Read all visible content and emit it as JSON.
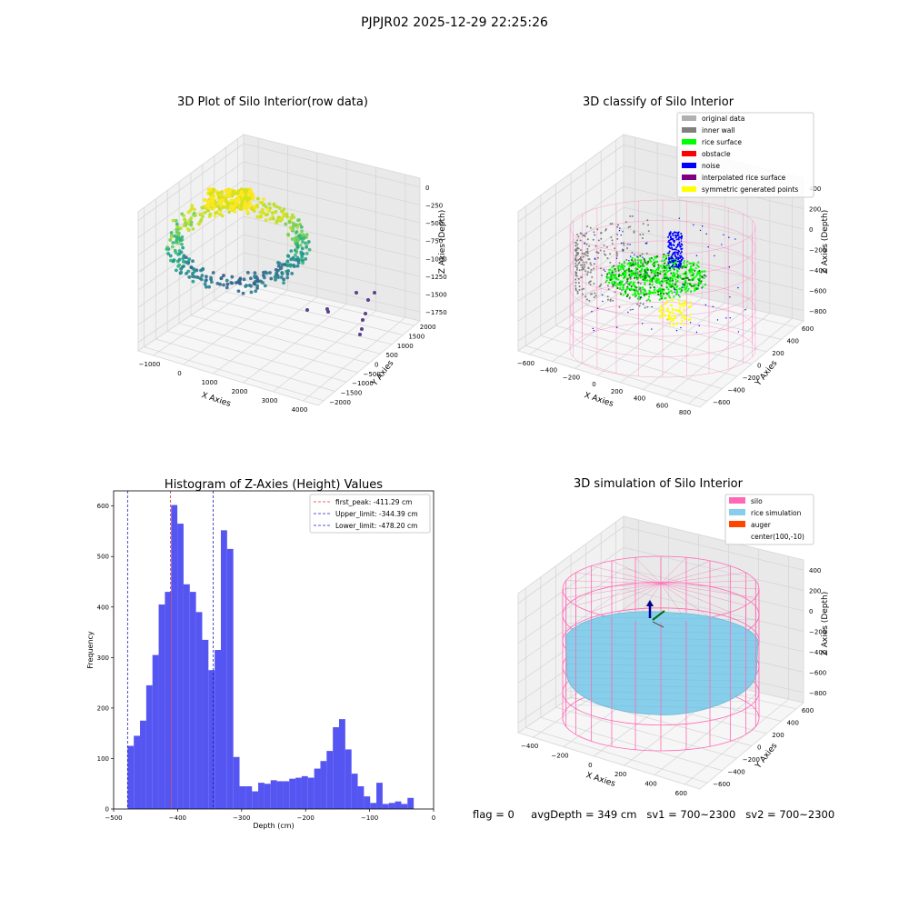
{
  "figure_title": "PJPJR02 2025-12-29 22:25:26",
  "footer": {
    "flag": "flag = 0",
    "avg_depth": "avgDepth = 349 cm",
    "sv1": "sv1 = 700~2300",
    "sv2": "sv2 = 700~2300"
  },
  "colors": {
    "histogram": "#5555f2",
    "first_peak_line": "#e03030",
    "limit_line": "#1f1fbf",
    "pane": "#f1f1f1",
    "silo": "#ff69b4",
    "rice_simulation": "#87ceeb",
    "auger": "#ff4500"
  },
  "chart_data": [
    {
      "type": "scatter",
      "projection": "3d",
      "title": "3D Plot of Silo Interior(row data)",
      "xlabel": "X Axies",
      "ylabel": "Y Axies",
      "zlabel": "Z Axies (Depth)",
      "x_ticks": [
        "−1000",
        "0",
        "1000",
        "2000",
        "3000",
        "4000"
      ],
      "y_ticks": [
        "2000",
        "1500",
        "1000",
        "500",
        "0",
        "−500",
        "−1000",
        "−1500",
        "−2000"
      ],
      "z_ticks": [
        "0",
        "−250",
        "−500",
        "−750",
        "−1000",
        "−1250",
        "−1500",
        "−1750"
      ],
      "colormap": "viridis"
    },
    {
      "type": "scatter",
      "projection": "3d",
      "title": "3D classify of Silo Interior",
      "xlabel": "X Axies",
      "ylabel": "Y Axies",
      "zlabel": "Z Axies (Depth)",
      "x_ticks": [
        "−600",
        "−400",
        "−200",
        "0",
        "200",
        "400",
        "600",
        "800"
      ],
      "y_ticks": [
        "600",
        "400",
        "200",
        "0",
        "−200",
        "−400",
        "−600"
      ],
      "z_ticks": [
        "400",
        "200",
        "0",
        "−200",
        "−400",
        "−600",
        "−800"
      ],
      "legend": [
        {
          "label": "original data",
          "color": "#b0b0b0"
        },
        {
          "label": "inner wall",
          "color": "#808080"
        },
        {
          "label": "rice surface",
          "color": "#00ff00"
        },
        {
          "label": "obstacle",
          "color": "#ff0000"
        },
        {
          "label": "noise",
          "color": "#0000ff"
        },
        {
          "label": "interpolated rice surface",
          "color": "#800080"
        },
        {
          "label": "symmetric generated points",
          "color": "#ffff00"
        }
      ]
    },
    {
      "type": "bar",
      "title": "Histogram of Z-Axies (Height) Values",
      "xlabel": "Depth (cm)",
      "ylabel": "Frequency",
      "xlim": [
        -500,
        0
      ],
      "ylim": [
        0,
        630
      ],
      "x_ticks": [
        -500,
        -400,
        -300,
        -200,
        -100,
        0
      ],
      "x_tick_labels": [
        "−500",
        "−400",
        "−300",
        "−200",
        "−100",
        "0"
      ],
      "y_ticks": [
        0,
        100,
        200,
        300,
        400,
        500,
        600
      ],
      "bin_start": -478.2,
      "bin_width": 9.72,
      "values": [
        125,
        145,
        175,
        245,
        305,
        405,
        430,
        602,
        565,
        445,
        430,
        390,
        335,
        275,
        315,
        552,
        515,
        103,
        45,
        45,
        35,
        52,
        50,
        57,
        55,
        55,
        60,
        62,
        65,
        62,
        80,
        95,
        115,
        162,
        178,
        118,
        70,
        45,
        25,
        12,
        52,
        10,
        12,
        15,
        10,
        22
      ],
      "lines": [
        {
          "label": "first_peak: -411.29 cm",
          "x": -411.29,
          "style": "first_peak"
        },
        {
          "label": "Upper_limit: -344.39 cm",
          "x": -344.39,
          "style": "limit"
        },
        {
          "label": "Lower_limit: -478.20 cm",
          "x": -478.2,
          "style": "limit"
        }
      ],
      "legend_position": "top-right",
      "grid": false
    },
    {
      "type": "scatter",
      "projection": "3d",
      "title": "3D simulation of Silo Interior",
      "xlabel": "X Axies",
      "ylabel": "Y Axies",
      "zlabel": "Z Axies (Depth)",
      "x_ticks": [
        "−400",
        "−200",
        "0",
        "200",
        "400",
        "600"
      ],
      "y_ticks": [
        "600",
        "400",
        "200",
        "0",
        "−200",
        "−400",
        "−600"
      ],
      "z_ticks": [
        "400",
        "200",
        "0",
        "−200",
        "−400",
        "−600",
        "−800"
      ],
      "legend": [
        {
          "label": "silo",
          "color": "#ff69b4"
        },
        {
          "label": "rice simulation",
          "color": "#87ceeb"
        },
        {
          "label": "auger",
          "color": "#ff4500"
        },
        {
          "label": "center(100,-10)",
          "color": ""
        }
      ]
    }
  ]
}
